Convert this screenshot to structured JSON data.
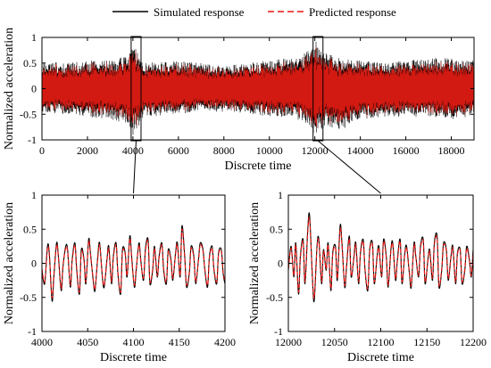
{
  "legend": {
    "simulated": "Simulated response",
    "predicted": "Predicted response"
  },
  "colors": {
    "simulated": "#000000",
    "predicted": "#e8140f",
    "predicted_fill": "#d21a12"
  },
  "chart_data": [
    {
      "type": "line",
      "id": "main",
      "xlabel": "Discrete time",
      "ylabel": "Normalized acceleration",
      "xlim": [
        0,
        19000
      ],
      "ylim": [
        -1,
        1
      ],
      "xticks": [
        0,
        2000,
        4000,
        6000,
        8000,
        10000,
        12000,
        14000,
        16000,
        18000
      ],
      "yticks": [
        -1,
        -0.5,
        0,
        0.5,
        1
      ],
      "ytick_labels": [
        "-1",
        "-0.5",
        "0",
        "0.5",
        "1"
      ],
      "grid": false,
      "zoom_boxes": [
        {
          "x": [
            4000,
            4200
          ],
          "y": [
            -1,
            1
          ]
        },
        {
          "x": [
            12000,
            12200
          ],
          "y": [
            -1,
            1
          ]
        }
      ],
      "series": [
        {
          "name": "Simulated response",
          "style": "solid"
        },
        {
          "name": "Predicted response",
          "style": "dashed"
        }
      ],
      "envelope": {
        "x": [
          0,
          1000,
          2000,
          3000,
          3800,
          4000,
          4500,
          6000,
          7000,
          8000,
          9000,
          10000,
          11000,
          11800,
          12000,
          12500,
          13000,
          14000,
          15000,
          16000,
          17000,
          18000,
          19000
        ],
        "upper": [
          0.55,
          0.5,
          0.55,
          0.55,
          0.65,
          0.9,
          0.5,
          0.55,
          0.5,
          0.45,
          0.5,
          0.55,
          0.6,
          0.75,
          0.95,
          0.7,
          0.6,
          0.55,
          0.5,
          0.55,
          0.6,
          0.6,
          0.55
        ],
        "lower": [
          -0.45,
          -0.5,
          -0.55,
          -0.6,
          -0.7,
          -0.9,
          -0.55,
          -0.5,
          -0.45,
          -0.45,
          -0.5,
          -0.55,
          -0.55,
          -0.75,
          -0.95,
          -0.7,
          -0.85,
          -0.6,
          -0.55,
          -0.55,
          -0.55,
          -0.6,
          -0.55
        ]
      }
    },
    {
      "type": "line",
      "id": "zoom1",
      "xlabel": "Discrete time",
      "ylabel": "Normalized acceleration",
      "xlim": [
        4000,
        4200
      ],
      "ylim": [
        -1,
        1
      ],
      "xticks": [
        4000,
        4050,
        4100,
        4150,
        4200
      ],
      "yticks": [
        -1,
        -0.5,
        0,
        0.5,
        1
      ],
      "ytick_labels": [
        "-1",
        "-0.5",
        "0",
        "0.5",
        "1"
      ],
      "grid": false,
      "series": [
        {
          "name": "Simulated response",
          "x": [
            4000,
            4003,
            4006,
            4008,
            4011,
            4013,
            4016,
            4018,
            4021,
            4023,
            4026,
            4028,
            4031,
            4033,
            4036,
            4038,
            4041,
            4043,
            4046,
            4048,
            4051,
            4053,
            4056,
            4058,
            4061,
            4063,
            4066,
            4068,
            4071,
            4073,
            4076,
            4078,
            4081,
            4083,
            4086,
            4088,
            4091,
            4093,
            4096,
            4098,
            4101,
            4103,
            4106,
            4108,
            4111,
            4113,
            4116,
            4118,
            4121,
            4123,
            4126,
            4128,
            4131,
            4133,
            4136,
            4138,
            4141,
            4143,
            4146,
            4148,
            4151,
            4153,
            4156,
            4158,
            4161,
            4163,
            4166,
            4168,
            4171,
            4173,
            4176,
            4178,
            4181,
            4183,
            4186,
            4188,
            4191,
            4193,
            4196,
            4198,
            4200
          ],
          "values": [
            -0.1,
            -0.3,
            0.25,
            0.15,
            -0.55,
            -0.2,
            0.3,
            0.1,
            -0.4,
            -0.05,
            0.25,
            0.2,
            -0.35,
            0.05,
            0.3,
            -0.1,
            -0.45,
            0.2,
            0.05,
            -0.3,
            0.35,
            0.15,
            -0.25,
            -0.4,
            0.1,
            0.3,
            -0.2,
            -0.35,
            0.05,
            0.25,
            -0.3,
            0.1,
            0.3,
            -0.15,
            -0.45,
            0.2,
            0.15,
            -0.2,
            0.4,
            0.1,
            -0.35,
            -0.1,
            0.3,
            0.05,
            -0.25,
            0.2,
            0.35,
            -0.3,
            -0.1,
            0.25,
            -0.2,
            0.1,
            0.3,
            -0.1,
            -0.3,
            0.2,
            0.05,
            -0.25,
            0.15,
            0.3,
            -0.2,
            0.55,
            0.1,
            -0.35,
            -0.15,
            0.25,
            0.1,
            -0.3,
            0.05,
            0.3,
            0.2,
            -0.1,
            -0.35,
            0.1,
            0.25,
            -0.1,
            -0.3,
            0.15,
            0.2,
            -0.15,
            -0.3
          ]
        },
        {
          "name": "Predicted response",
          "x": [
            4000,
            4003,
            4006,
            4008,
            4011,
            4013,
            4016,
            4018,
            4021,
            4023,
            4026,
            4028,
            4031,
            4033,
            4036,
            4038,
            4041,
            4043,
            4046,
            4048,
            4051,
            4053,
            4056,
            4058,
            4061,
            4063,
            4066,
            4068,
            4071,
            4073,
            4076,
            4078,
            4081,
            4083,
            4086,
            4088,
            4091,
            4093,
            4096,
            4098,
            4101,
            4103,
            4106,
            4108,
            4111,
            4113,
            4116,
            4118,
            4121,
            4123,
            4126,
            4128,
            4131,
            4133,
            4136,
            4138,
            4141,
            4143,
            4146,
            4148,
            4151,
            4153,
            4156,
            4158,
            4161,
            4163,
            4166,
            4168,
            4171,
            4173,
            4176,
            4178,
            4181,
            4183,
            4186,
            4188,
            4191,
            4193,
            4196,
            4198,
            4200
          ],
          "values": [
            -0.08,
            -0.27,
            0.22,
            0.12,
            -0.5,
            -0.17,
            0.27,
            0.08,
            -0.37,
            -0.03,
            0.22,
            0.18,
            -0.32,
            0.03,
            0.27,
            -0.08,
            -0.42,
            0.17,
            0.03,
            -0.27,
            0.32,
            0.13,
            -0.23,
            -0.37,
            0.08,
            0.27,
            -0.18,
            -0.32,
            0.03,
            0.22,
            -0.27,
            0.08,
            0.27,
            -0.13,
            -0.42,
            0.17,
            0.13,
            -0.18,
            0.36,
            0.08,
            -0.32,
            -0.08,
            0.27,
            0.03,
            -0.22,
            0.17,
            0.32,
            -0.27,
            -0.08,
            0.22,
            -0.18,
            0.08,
            0.27,
            -0.08,
            -0.27,
            0.17,
            0.03,
            -0.22,
            0.13,
            0.27,
            -0.18,
            0.5,
            0.08,
            -0.32,
            -0.13,
            0.22,
            0.08,
            -0.27,
            0.03,
            0.27,
            0.18,
            -0.08,
            -0.32,
            0.08,
            0.22,
            -0.08,
            -0.27,
            0.13,
            0.18,
            -0.13,
            -0.27
          ]
        }
      ]
    },
    {
      "type": "line",
      "id": "zoom2",
      "xlabel": "Discrete time",
      "ylabel": "Normalized acceleration",
      "xlim": [
        12000,
        12200
      ],
      "ylim": [
        -1,
        1
      ],
      "xticks": [
        12000,
        12050,
        12100,
        12150,
        12200
      ],
      "yticks": [
        -1,
        -0.5,
        0,
        0.5,
        1
      ],
      "ytick_labels": [
        "-1",
        "-0.5",
        "0",
        "0.5",
        "1"
      ],
      "grid": false,
      "series": [
        {
          "name": "Simulated response",
          "x": [
            12000,
            12003,
            12006,
            12008,
            12011,
            12013,
            12016,
            12018,
            12021,
            12023,
            12026,
            12028,
            12031,
            12033,
            12036,
            12038,
            12041,
            12043,
            12046,
            12048,
            12051,
            12053,
            12056,
            12058,
            12061,
            12063,
            12066,
            12068,
            12071,
            12073,
            12076,
            12078,
            12081,
            12083,
            12086,
            12088,
            12091,
            12093,
            12096,
            12098,
            12101,
            12103,
            12106,
            12108,
            12111,
            12113,
            12116,
            12118,
            12121,
            12123,
            12126,
            12128,
            12131,
            12133,
            12136,
            12138,
            12141,
            12143,
            12146,
            12148,
            12151,
            12153,
            12156,
            12158,
            12161,
            12163,
            12166,
            12168,
            12171,
            12173,
            12176,
            12178,
            12181,
            12183,
            12186,
            12188,
            12191,
            12193,
            12196,
            12198,
            12200
          ],
          "values": [
            -0.1,
            0.25,
            -0.2,
            0.3,
            -0.45,
            0.1,
            0.35,
            -0.3,
            0.5,
            0.7,
            -0.2,
            -0.55,
            0.25,
            0.35,
            -0.3,
            0.2,
            -0.1,
            0.3,
            -0.4,
            0.15,
            0.25,
            -0.25,
            0.55,
            0.3,
            -0.35,
            -0.05,
            0.4,
            -0.2,
            0.1,
            0.3,
            -0.3,
            0.15,
            0.35,
            -0.1,
            -0.4,
            0.2,
            0.3,
            -0.3,
            0.1,
            0.25,
            -0.2,
            0.35,
            0.1,
            -0.35,
            0.2,
            0.3,
            -0.25,
            0.05,
            0.35,
            -0.3,
            0.15,
            0.25,
            -0.15,
            -0.35,
            0.3,
            0.1,
            -0.2,
            0.25,
            0.35,
            -0.3,
            0.05,
            0.2,
            -0.25,
            0.3,
            0.4,
            -0.35,
            -0.1,
            0.3,
            0.2,
            -0.25,
            0.1,
            0.25,
            -0.3,
            0.15,
            0.2,
            -0.3,
            -0.1,
            0.25,
            0.05,
            -0.2,
            0.2
          ]
        },
        {
          "name": "Predicted response",
          "x": [
            12000,
            12003,
            12006,
            12008,
            12011,
            12013,
            12016,
            12018,
            12021,
            12023,
            12026,
            12028,
            12031,
            12033,
            12036,
            12038,
            12041,
            12043,
            12046,
            12048,
            12051,
            12053,
            12056,
            12058,
            12061,
            12063,
            12066,
            12068,
            12071,
            12073,
            12076,
            12078,
            12081,
            12083,
            12086,
            12088,
            12091,
            12093,
            12096,
            12098,
            12101,
            12103,
            12106,
            12108,
            12111,
            12113,
            12116,
            12118,
            12121,
            12123,
            12126,
            12128,
            12131,
            12133,
            12136,
            12138,
            12141,
            12143,
            12146,
            12148,
            12151,
            12153,
            12156,
            12158,
            12161,
            12163,
            12166,
            12168,
            12171,
            12173,
            12176,
            12178,
            12181,
            12183,
            12186,
            12188,
            12191,
            12193,
            12196,
            12198,
            12200
          ],
          "values": [
            -0.08,
            0.22,
            -0.18,
            0.27,
            -0.42,
            0.08,
            0.32,
            -0.27,
            0.46,
            0.64,
            -0.18,
            -0.5,
            0.22,
            0.32,
            -0.27,
            0.18,
            -0.08,
            0.27,
            -0.37,
            0.13,
            0.22,
            -0.22,
            0.5,
            0.27,
            -0.32,
            -0.03,
            0.36,
            -0.18,
            0.08,
            0.27,
            -0.27,
            0.13,
            0.32,
            -0.08,
            -0.37,
            0.18,
            0.27,
            -0.27,
            0.08,
            0.22,
            -0.18,
            0.32,
            0.08,
            -0.32,
            0.18,
            0.27,
            -0.22,
            0.03,
            0.32,
            -0.27,
            0.13,
            0.22,
            -0.13,
            -0.32,
            0.27,
            0.08,
            -0.18,
            0.22,
            0.32,
            -0.27,
            0.03,
            0.18,
            -0.22,
            0.27,
            0.36,
            -0.32,
            -0.08,
            0.27,
            0.18,
            -0.22,
            0.08,
            0.22,
            -0.27,
            0.13,
            0.18,
            -0.27,
            -0.08,
            0.22,
            0.03,
            -0.18,
            0.18
          ]
        }
      ]
    }
  ]
}
